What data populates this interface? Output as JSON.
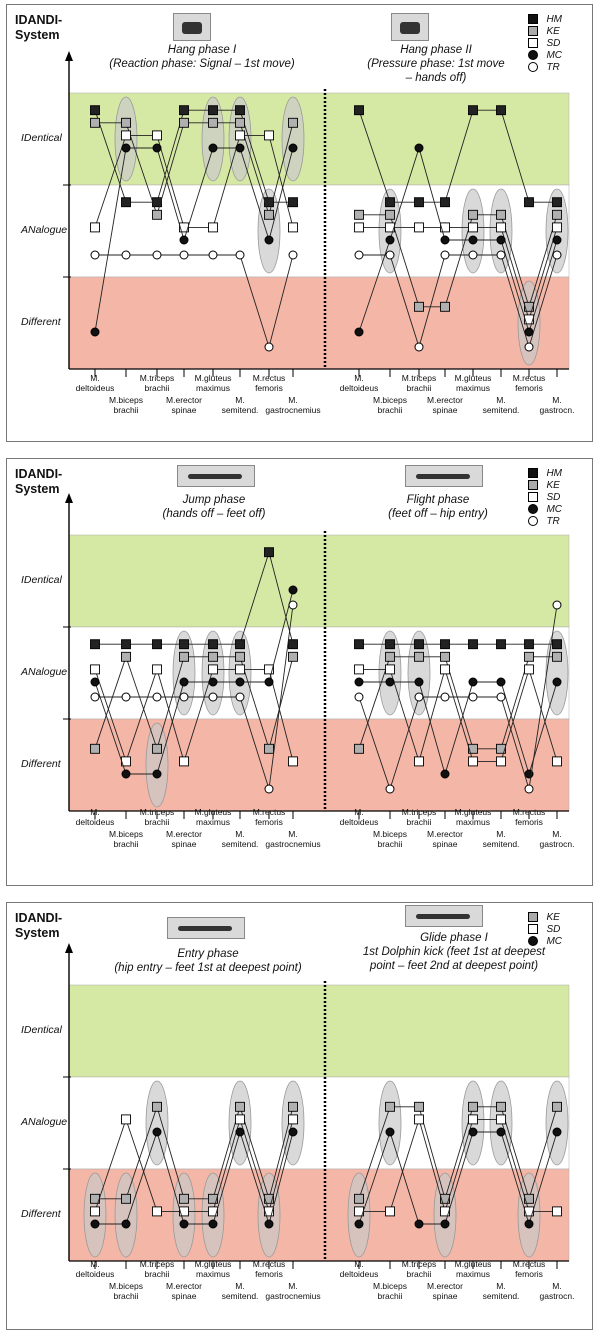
{
  "system_label": "IDANDI-\nSystem",
  "colors": {
    "identical": "#d6e9a4",
    "analogue": "#ffffff",
    "different": "#f4b6a6",
    "ellipse": "#c9c9c9",
    "km_fill": "#b0b0b0",
    "hm_fill": "#222222"
  },
  "legend_full": [
    {
      "symbol": "HM",
      "shape": "filled-square"
    },
    {
      "symbol": "KE",
      "shape": "grey-square"
    },
    {
      "symbol": "SD",
      "shape": "open-square"
    },
    {
      "symbol": "MC",
      "shape": "filled-circle"
    },
    {
      "symbol": "TR",
      "shape": "open-circle"
    }
  ],
  "legend_short": [
    {
      "symbol": "KE",
      "shape": "grey-square"
    },
    {
      "symbol": "SD",
      "shape": "open-square"
    },
    {
      "symbol": "MC",
      "shape": "filled-circle"
    }
  ],
  "categories": [
    "IDentical",
    "ANalogue",
    "Different"
  ],
  "muscles_left": [
    "M.\ndeltoideus",
    "M.biceps\nbrachii",
    "M.triceps\nbrachii",
    "M.erector\nspinae",
    "M.gluteus\nmaximus",
    "M.\nsemitend.",
    "M.rectus\nfemoris",
    "M.\ngastrocnemius"
  ],
  "muscles_right": [
    "M.\ndeltoideus",
    "M.biceps\nbrachii",
    "M.triceps\nbrachii",
    "M.erector\nspinae",
    "M.gluteus\nmaximus",
    "M.\nsemitend.",
    "M.rectus\nfemoris",
    "M.\ngastrocn."
  ],
  "chart_data": [
    {
      "type": "scatter",
      "panel": 1,
      "y_categories": [
        "IDentical",
        "ANalogue",
        "Different"
      ],
      "x_categories": [
        "M. deltoideus",
        "M.biceps brachii",
        "M.triceps brachii",
        "M.erector spinae",
        "M.gluteus maximus",
        "M. semitend.",
        "M.rectus femoris",
        "M. gastrocnemius"
      ],
      "phases": [
        {
          "title": "Hang phase I\n(Reaction phase: Signal – 1st move)",
          "series": [
            {
              "name": "HM",
              "values": [
                "IDentical",
                "ANalogue",
                "ANalogue",
                "IDentical",
                "IDentical",
                "IDentical",
                "ANalogue",
                "ANalogue"
              ]
            },
            {
              "name": "KE",
              "values": [
                "IDentical",
                "IDentical",
                "ANalogue",
                "IDentical",
                "IDentical",
                "IDentical",
                "ANalogue",
                "IDentical"
              ]
            },
            {
              "name": "SD",
              "values": [
                "ANalogue",
                "IDentical",
                "IDentical",
                "ANalogue",
                "ANalogue",
                "IDentical",
                "IDentical",
                "ANalogue"
              ]
            },
            {
              "name": "MC",
              "values": [
                "Different",
                "IDentical",
                "IDentical",
                "ANalogue",
                "IDentical",
                "IDentical",
                "ANalogue",
                "IDentical"
              ]
            },
            {
              "name": "TR",
              "values": [
                "ANalogue",
                "ANalogue",
                "ANalogue",
                "ANalogue",
                "ANalogue",
                "ANalogue",
                "Different",
                "ANalogue"
              ]
            }
          ]
        },
        {
          "title": "Hang phase II\n(Pressure phase: 1st move\n– hands off)",
          "series": [
            {
              "name": "HM",
              "values": [
                "IDentical",
                "ANalogue",
                "ANalogue",
                "ANalogue",
                "IDentical",
                "IDentical",
                "ANalogue",
                "ANalogue"
              ]
            },
            {
              "name": "KE",
              "values": [
                "ANalogue",
                "ANalogue",
                "Different",
                "Different",
                "ANalogue",
                "ANalogue",
                "Different",
                "ANalogue"
              ]
            },
            {
              "name": "SD",
              "values": [
                "ANalogue",
                "ANalogue",
                "ANalogue",
                "ANalogue",
                "ANalogue",
                "ANalogue",
                "Different",
                "ANalogue"
              ]
            },
            {
              "name": "MC",
              "values": [
                "Different",
                "ANalogue",
                "IDentical",
                "ANalogue",
                "ANalogue",
                "ANalogue",
                "Different",
                "ANalogue"
              ]
            },
            {
              "name": "TR",
              "values": [
                "ANalogue",
                "ANalogue",
                "Different",
                "ANalogue",
                "ANalogue",
                "ANalogue",
                "Different",
                "ANalogue"
              ]
            }
          ]
        }
      ]
    },
    {
      "type": "scatter",
      "panel": 2,
      "y_categories": [
        "IDentical",
        "ANalogue",
        "Different"
      ],
      "x_categories": [
        "M. deltoideus",
        "M.biceps brachii",
        "M.triceps brachii",
        "M.erector spinae",
        "M.gluteus maximus",
        "M. semitend.",
        "M.rectus femoris",
        "M. gastrocnemius"
      ],
      "phases": [
        {
          "title": "Jump phase\n(hands off – feet off)",
          "series": [
            {
              "name": "HM",
              "values": [
                "ANalogue",
                "ANalogue",
                "ANalogue",
                "ANalogue",
                "ANalogue",
                "ANalogue",
                "IDentical",
                "ANalogue"
              ]
            },
            {
              "name": "KE",
              "values": [
                "Different",
                "ANalogue",
                "Different",
                "ANalogue",
                "ANalogue",
                "ANalogue",
                "Different",
                "ANalogue"
              ]
            },
            {
              "name": "SD",
              "values": [
                "ANalogue",
                "Different",
                "ANalogue",
                "Different",
                "ANalogue",
                "ANalogue",
                "ANalogue",
                "Different"
              ]
            },
            {
              "name": "MC",
              "values": [
                "ANalogue",
                "Different",
                "Different",
                "ANalogue",
                "ANalogue",
                "ANalogue",
                "ANalogue",
                "IDentical"
              ]
            },
            {
              "name": "TR",
              "values": [
                "ANalogue",
                "ANalogue",
                "ANalogue",
                "ANalogue",
                "ANalogue",
                "ANalogue",
                "Different",
                "IDentical"
              ]
            }
          ]
        },
        {
          "title": "Flight phase\n(feet off – hip entry)",
          "series": [
            {
              "name": "HM",
              "values": [
                "ANalogue",
                "ANalogue",
                "ANalogue",
                "ANalogue",
                "ANalogue",
                "ANalogue",
                "ANalogue",
                "ANalogue"
              ]
            },
            {
              "name": "KE",
              "values": [
                "Different",
                "ANalogue",
                "ANalogue",
                "ANalogue",
                "Different",
                "Different",
                "ANalogue",
                "ANalogue"
              ]
            },
            {
              "name": "SD",
              "values": [
                "ANalogue",
                "ANalogue",
                "Different",
                "ANalogue",
                "Different",
                "Different",
                "ANalogue",
                "Different"
              ]
            },
            {
              "name": "MC",
              "values": [
                "ANalogue",
                "ANalogue",
                "ANalogue",
                "Different",
                "ANalogue",
                "ANalogue",
                "Different",
                "ANalogue"
              ]
            },
            {
              "name": "TR",
              "values": [
                "ANalogue",
                "Different",
                "ANalogue",
                "ANalogue",
                "ANalogue",
                "ANalogue",
                "Different",
                "IDentical"
              ]
            }
          ]
        }
      ]
    },
    {
      "type": "scatter",
      "panel": 3,
      "y_categories": [
        "IDentical",
        "ANalogue",
        "Different"
      ],
      "x_categories": [
        "M. deltoideus",
        "M.biceps brachii",
        "M.triceps brachii",
        "M.erector spinae",
        "M.gluteus maximus",
        "M. semitend.",
        "M.rectus femoris",
        "M. gastrocnemius"
      ],
      "phases": [
        {
          "title": "Entry phase\n(hip entry – feet 1st at deepest point)",
          "series": [
            {
              "name": "KE",
              "values": [
                "Different",
                "Different",
                "ANalogue",
                "Different",
                "Different",
                "ANalogue",
                "Different",
                "ANalogue"
              ]
            },
            {
              "name": "SD",
              "values": [
                "Different",
                "ANalogue",
                "Different",
                "Different",
                "Different",
                "ANalogue",
                "Different",
                "ANalogue"
              ]
            },
            {
              "name": "MC",
              "values": [
                "Different",
                "Different",
                "ANalogue",
                "Different",
                "Different",
                "ANalogue",
                "Different",
                "ANalogue"
              ]
            }
          ]
        },
        {
          "title": "Glide phase I\n1st Dolphin kick (feet 1st at deepest\npoint – feet 2nd at deepest point)",
          "series": [
            {
              "name": "KE",
              "values": [
                "Different",
                "ANalogue",
                "ANalogue",
                "Different",
                "ANalogue",
                "ANalogue",
                "Different",
                "ANalogue"
              ]
            },
            {
              "name": "SD",
              "values": [
                "Different",
                "Different",
                "ANalogue",
                "Different",
                "ANalogue",
                "ANalogue",
                "Different",
                "Different"
              ]
            },
            {
              "name": "MC",
              "values": [
                "Different",
                "ANalogue",
                "Different",
                "Different",
                "ANalogue",
                "ANalogue",
                "Different",
                "ANalogue"
              ]
            }
          ]
        }
      ]
    }
  ]
}
